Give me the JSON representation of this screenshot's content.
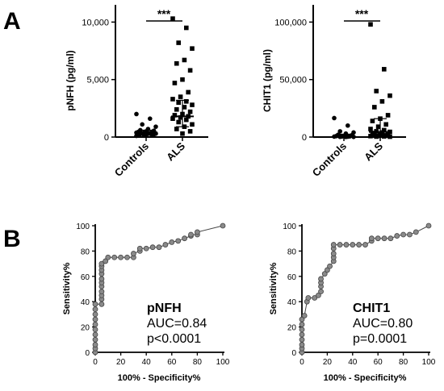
{
  "panels": {
    "a": "A",
    "b": "B"
  },
  "chart_data": [
    {
      "type": "scatter",
      "subtype": "dot-plot",
      "ylabel": "pNFH (pg/ml)",
      "categories": [
        "Controls",
        "ALS"
      ],
      "yticks": [
        "0",
        "5,000",
        "10,000"
      ],
      "ylim": [
        0,
        11500
      ],
      "significance": "***",
      "series": [
        {
          "name": "Controls",
          "marker": "circle",
          "values": [
            2000,
            1600,
            1100,
            900,
            700,
            600,
            550,
            500,
            450,
            420,
            400,
            380,
            350,
            320,
            300,
            280,
            250,
            230,
            200,
            180,
            150,
            120,
            100
          ]
        },
        {
          "name": "ALS",
          "marker": "square",
          "values": [
            10300,
            9500,
            8200,
            7700,
            6700,
            6400,
            5800,
            5000,
            4700,
            3900,
            3500,
            3300,
            3100,
            3000,
            2800,
            2600,
            2400,
            2200,
            2000,
            1900,
            1800,
            1700,
            1600,
            1500,
            1300,
            1100,
            900,
            700,
            500,
            300
          ]
        }
      ],
      "median": [
        400,
        1800
      ],
      "iqr": [
        [
          180,
          600
        ],
        [
          900,
          3200
        ]
      ]
    },
    {
      "type": "scatter",
      "subtype": "dot-plot",
      "ylabel": "CHIT1 (pg/ml)",
      "categories": [
        "Controls",
        "ALS"
      ],
      "yticks": [
        "0",
        "50,000",
        "100,000"
      ],
      "ylim": [
        0,
        115000
      ],
      "significance": "***",
      "series": [
        {
          "name": "Controls",
          "marker": "circle",
          "values": [
            16500,
            10000,
            5000,
            4000,
            3000,
            2000,
            1500,
            1000,
            800,
            600,
            500,
            400,
            300,
            200,
            150,
            100
          ]
        },
        {
          "name": "ALS",
          "marker": "square",
          "values": [
            98000,
            59000,
            40000,
            36000,
            31000,
            26000,
            19000,
            16000,
            14000,
            11000,
            9000,
            7000,
            6000,
            5000,
            4500,
            4000,
            3500,
            3000,
            2500,
            2000,
            1500,
            1000,
            800,
            600,
            400,
            300
          ]
        }
      ],
      "median": [
        1000,
        4500
      ],
      "iqr": [
        [
          300,
          2500
        ],
        [
          1500,
          16000
        ]
      ]
    },
    {
      "type": "line",
      "subtype": "roc",
      "xlabel": "100% - Specificity%",
      "ylabel": "Sensitivity%",
      "xlim": [
        0,
        100
      ],
      "ylim": [
        0,
        100
      ],
      "xticks": [
        "0",
        "20",
        "40",
        "60",
        "80",
        "100"
      ],
      "yticks": [
        "0",
        "20",
        "40",
        "60",
        "80",
        "100"
      ],
      "annotation": {
        "title": "pNFH",
        "auc": "AUC=0.84",
        "p": "p<0.0001"
      },
      "points": [
        [
          0,
          0
        ],
        [
          0,
          3
        ],
        [
          0,
          6
        ],
        [
          0,
          10
        ],
        [
          0,
          14
        ],
        [
          0,
          18
        ],
        [
          0,
          22
        ],
        [
          0,
          26
        ],
        [
          0,
          30
        ],
        [
          0,
          34
        ],
        [
          0,
          38
        ],
        [
          5,
          38
        ],
        [
          5,
          42
        ],
        [
          5,
          45
        ],
        [
          5,
          48
        ],
        [
          5,
          52
        ],
        [
          5,
          55
        ],
        [
          5,
          58
        ],
        [
          5,
          62
        ],
        [
          5,
          65
        ],
        [
          5,
          68
        ],
        [
          5,
          70
        ],
        [
          8,
          72
        ],
        [
          10,
          75
        ],
        [
          15,
          75
        ],
        [
          20,
          75
        ],
        [
          25,
          75
        ],
        [
          30,
          75
        ],
        [
          30,
          78
        ],
        [
          35,
          80
        ],
        [
          35,
          82
        ],
        [
          40,
          82
        ],
        [
          45,
          83
        ],
        [
          50,
          83
        ],
        [
          55,
          85
        ],
        [
          60,
          87
        ],
        [
          65,
          88
        ],
        [
          70,
          90
        ],
        [
          75,
          92
        ],
        [
          75,
          93
        ],
        [
          80,
          93
        ],
        [
          80,
          95
        ],
        [
          100,
          100
        ]
      ]
    },
    {
      "type": "line",
      "subtype": "roc",
      "xlabel": "100% - Specificity%",
      "ylabel": "Sensitivity%",
      "xlim": [
        0,
        100
      ],
      "ylim": [
        0,
        100
      ],
      "xticks": [
        "0",
        "20",
        "40",
        "60",
        "80",
        "100"
      ],
      "yticks": [
        "0",
        "20",
        "40",
        "60",
        "80",
        "100"
      ],
      "annotation": {
        "title": "CHIT1",
        "auc": "AUC=0.80",
        "p": "p=0.0001"
      },
      "points": [
        [
          0,
          0
        ],
        [
          0,
          3
        ],
        [
          0,
          6
        ],
        [
          0,
          10
        ],
        [
          0,
          14
        ],
        [
          0,
          18
        ],
        [
          0,
          22
        ],
        [
          0,
          26
        ],
        [
          2,
          29
        ],
        [
          4,
          40
        ],
        [
          5,
          43
        ],
        [
          10,
          43
        ],
        [
          13,
          45
        ],
        [
          15,
          48
        ],
        [
          15,
          52
        ],
        [
          15,
          55
        ],
        [
          15,
          58
        ],
        [
          18,
          62
        ],
        [
          20,
          65
        ],
        [
          22,
          68
        ],
        [
          25,
          72
        ],
        [
          25,
          75
        ],
        [
          25,
          78
        ],
        [
          25,
          82
        ],
        [
          25,
          85
        ],
        [
          30,
          85
        ],
        [
          35,
          85
        ],
        [
          40,
          85
        ],
        [
          45,
          85
        ],
        [
          50,
          85
        ],
        [
          55,
          88
        ],
        [
          55,
          90
        ],
        [
          60,
          90
        ],
        [
          65,
          90
        ],
        [
          70,
          90
        ],
        [
          75,
          92
        ],
        [
          80,
          93
        ],
        [
          85,
          93
        ],
        [
          90,
          95
        ],
        [
          100,
          100
        ]
      ]
    }
  ]
}
